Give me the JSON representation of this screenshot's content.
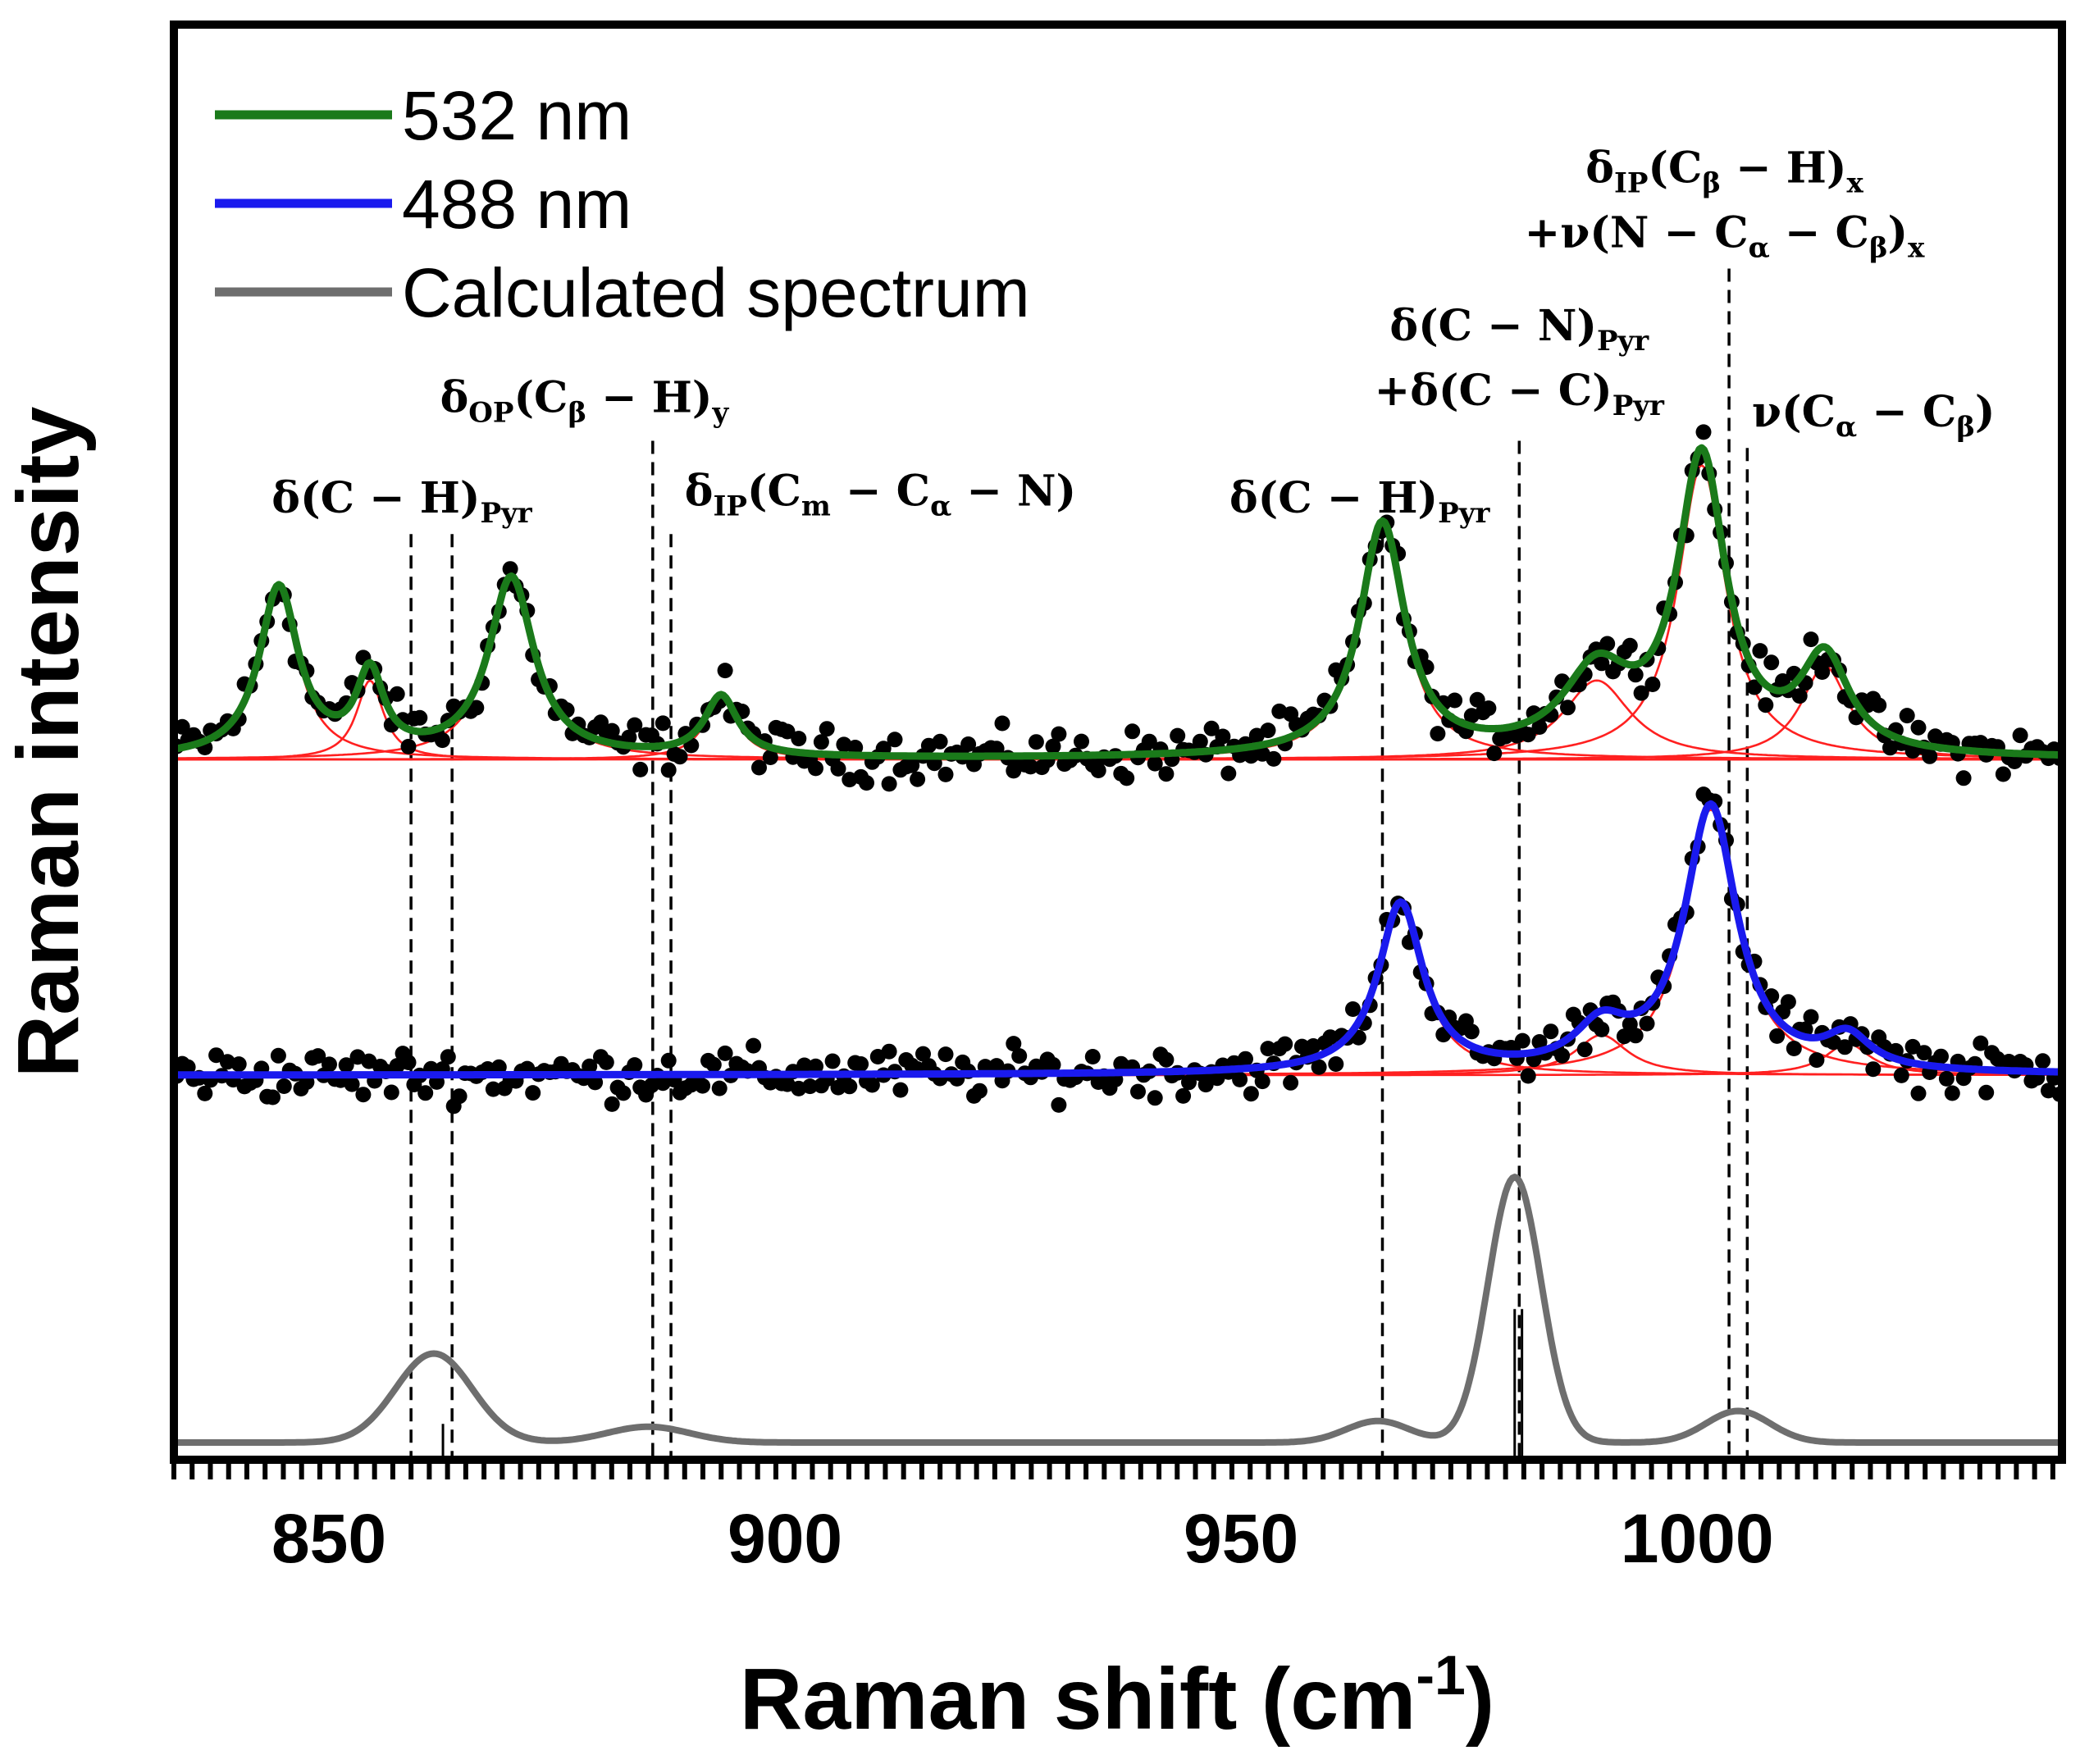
{
  "chart_data": {
    "type": "line",
    "xlabel": "Raman shift (cm",
    "xlabel_sup": "-1",
    "xlabel_close": ")",
    "ylabel": "Raman intensity",
    "xlim": [
      833,
      1040
    ],
    "xticks": [
      850,
      900,
      950,
      1000
    ],
    "xtick_labels": [
      "850",
      "900",
      "950",
      "1000"
    ],
    "ylim": [
      0,
      10
    ],
    "legend_position": "top-left",
    "legend": [
      {
        "label": "532 nm",
        "color": "#1a7a1a"
      },
      {
        "label": "488 nm",
        "color": "#1a1aee"
      },
      {
        "label": "Calculated spectrum",
        "color": "#6e6e6e"
      }
    ],
    "colors": {
      "fit_532": "#1a7a1a",
      "fit_488": "#1a1aee",
      "calc": "#6e6e6e",
      "components": "#ff2020",
      "dots": "#000000"
    },
    "series": [
      {
        "name": "532 nm",
        "baseline": 4.88,
        "baseline_slope": 0.0,
        "peaks": [
          {
            "center": 844.5,
            "height": 1.18,
            "width": 2.6
          },
          {
            "center": 854.5,
            "height": 0.55,
            "width": 1.8
          },
          {
            "center": 870.0,
            "height": 1.25,
            "width": 3.0
          },
          {
            "center": 893.0,
            "height": 0.42,
            "width": 2.2
          },
          {
            "center": 965.5,
            "height": 1.62,
            "width": 3.0
          },
          {
            "center": 989.0,
            "height": 0.55,
            "width": 4.5
          },
          {
            "center": 1000.5,
            "height": 2.05,
            "width": 3.2
          },
          {
            "center": 1014.0,
            "height": 0.65,
            "width": 3.2
          }
        ]
      },
      {
        "name": "488 nm",
        "baseline": 2.68,
        "baseline_slope": 0.0,
        "peaks": [
          {
            "center": 967.5,
            "height": 1.18,
            "width": 3.0
          },
          {
            "center": 989.5,
            "height": 0.28,
            "width": 3.5
          },
          {
            "center": 1001.5,
            "height": 1.85,
            "width": 3.5
          },
          {
            "center": 1016.5,
            "height": 0.22,
            "width": 3.0
          }
        ]
      },
      {
        "name": "Calculated spectrum",
        "baseline": 0.12,
        "peaks": [
          {
            "center": 861.5,
            "height": 0.62,
            "sigma": 4.2
          },
          {
            "center": 885.0,
            "height": 0.11,
            "sigma": 4.5
          },
          {
            "center": 965.0,
            "height": 0.15,
            "sigma": 3.5
          },
          {
            "center": 980.0,
            "height": 1.85,
            "sigma": 2.9
          },
          {
            "center": 1004.5,
            "height": 0.22,
            "sigma": 3.5
          }
        ]
      }
    ],
    "vlines": [
      859,
      863.5,
      885.5,
      887.5,
      965.5,
      980.5,
      1003.5,
      1005.5
    ],
    "annotations": [
      {
        "label": "δ(C − H)",
        "sub": "Pyr",
        "x": 858,
        "y": 6.6,
        "anchor": "middle"
      },
      {
        "label": "δ",
        "sub": "OP",
        "text2": "(C",
        "sub2": "β",
        "text3": " − H)",
        "sub3": "y",
        "x": 878,
        "y": 7.3,
        "anchor": "middle"
      },
      {
        "label": "δ",
        "sub": "IP",
        "text2": "(C",
        "sub2": "m",
        "text3": " − C",
        "sub3": "α",
        "text4": " − N)",
        "x": 889,
        "y": 6.65,
        "anchor": "start"
      },
      {
        "label": "δ(C − H)",
        "sub": "Pyr",
        "x": 963,
        "y": 6.6,
        "anchor": "middle"
      },
      {
        "label": "δ(C − N)",
        "sub": "Pyr",
        "x": 980.5,
        "y": 7.8,
        "anchor": "middle"
      },
      {
        "label": "+δ(C − C)",
        "sub": "Pyr",
        "x": 980.5,
        "y": 7.35,
        "anchor": "middle"
      },
      {
        "label": "ν(C",
        "sub": "α",
        "text2": " − C",
        "sub2": "β",
        "text3": ")",
        "x": 1006,
        "y": 7.2,
        "anchor": "start"
      },
      {
        "label": "δ",
        "sub": "IP",
        "text2": "(C",
        "sub2": "β",
        "text3": " − H)",
        "sub3": "x",
        "x": 1003,
        "y": 8.9,
        "anchor": "middle"
      },
      {
        "label": "+ν(N − C",
        "sub": "α",
        "text2": " − C",
        "sub2": "β",
        "text3": ")",
        "sub3": "x",
        "x": 1003,
        "y": 8.45,
        "anchor": "middle"
      }
    ]
  }
}
